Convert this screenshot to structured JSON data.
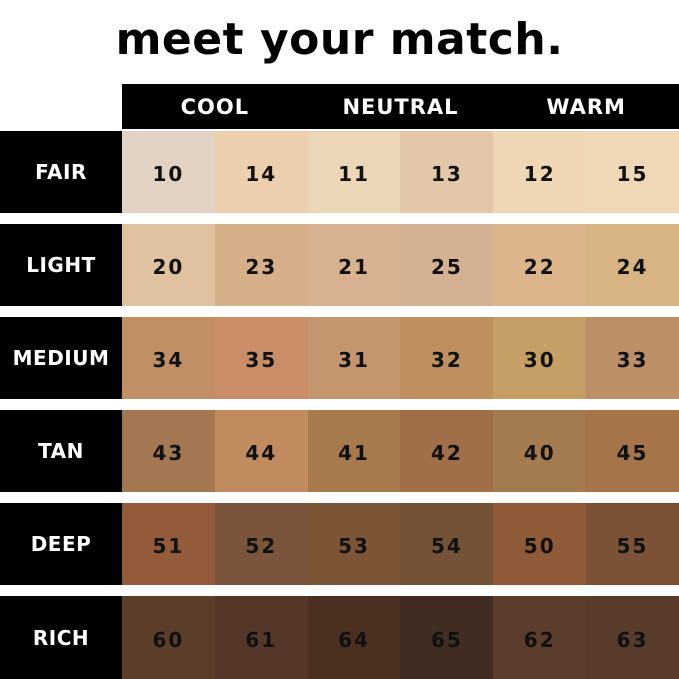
{
  "title": "meet your match.",
  "columns": [
    "COOL",
    "NEUTRAL",
    "WARM"
  ],
  "rows": [
    {
      "label": "FAIR",
      "shades": [
        {
          "n": "10",
          "c": "#e3d3c5"
        },
        {
          "n": "14",
          "c": "#ebcfae"
        },
        {
          "n": "11",
          "c": "#ebd6b8"
        },
        {
          "n": "13",
          "c": "#e2c7a8"
        },
        {
          "n": "12",
          "c": "#efd7b5"
        },
        {
          "n": "15",
          "c": "#eed8b5"
        }
      ]
    },
    {
      "label": "LIGHT",
      "shades": [
        {
          "n": "20",
          "c": "#e1c2a0"
        },
        {
          "n": "23",
          "c": "#d6ae88"
        },
        {
          "n": "21",
          "c": "#d8b190"
        },
        {
          "n": "25",
          "c": "#d4b193"
        },
        {
          "n": "22",
          "c": "#dcb58c"
        },
        {
          "n": "24",
          "c": "#d8b484"
        }
      ]
    },
    {
      "label": "MEDIUM",
      "shades": [
        {
          "n": "34",
          "c": "#c08f66"
        },
        {
          "n": "35",
          "c": "#c98e68"
        },
        {
          "n": "31",
          "c": "#c49670"
        },
        {
          "n": "32",
          "c": "#be905f"
        },
        {
          "n": "30",
          "c": "#c69f66"
        },
        {
          "n": "33",
          "c": "#bb9068"
        }
      ]
    },
    {
      "label": "TAN",
      "shades": [
        {
          "n": "43",
          "c": "#a27751"
        },
        {
          "n": "44",
          "c": "#bf8b5f"
        },
        {
          "n": "41",
          "c": "#a77a4d"
        },
        {
          "n": "42",
          "c": "#a06e48"
        },
        {
          "n": "40",
          "c": "#a47b50"
        },
        {
          "n": "45",
          "c": "#a5744a"
        }
      ]
    },
    {
      "label": "DEEP",
      "shades": [
        {
          "n": "51",
          "c": "#935b3a"
        },
        {
          "n": "52",
          "c": "#7a553b"
        },
        {
          "n": "53",
          "c": "#7d5535"
        },
        {
          "n": "54",
          "c": "#735236"
        },
        {
          "n": "50",
          "c": "#8e5a37"
        },
        {
          "n": "55",
          "c": "#7b5236"
        }
      ]
    },
    {
      "label": "RICH",
      "shades": [
        {
          "n": "60",
          "c": "#5b3d2a"
        },
        {
          "n": "61",
          "c": "#553729"
        },
        {
          "n": "64",
          "c": "#4b2f21"
        },
        {
          "n": "65",
          "c": "#402c21"
        },
        {
          "n": "62",
          "c": "#5a3d2c"
        },
        {
          "n": "63",
          "c": "#583b2b"
        }
      ]
    }
  ]
}
